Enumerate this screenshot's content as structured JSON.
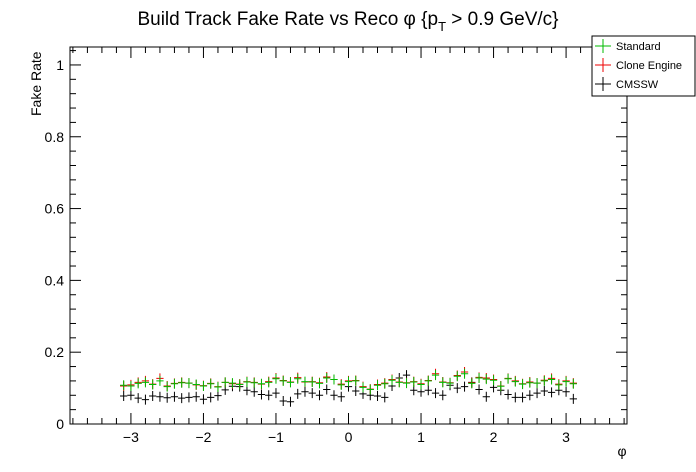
{
  "chart_data": {
    "type": "scatter",
    "title_main": "Build Track Fake Rate vs Reco φ {p",
    "title_sub": "T",
    "title_rest": " > 0.9 GeV/c}",
    "xlabel": "φ",
    "ylabel": "Fake Rate",
    "xlim": [
      -3.84,
      3.84
    ],
    "ylim": [
      0,
      1.05
    ],
    "x_ticks": [
      -3,
      -2,
      -1,
      0,
      1,
      2,
      3
    ],
    "x_tick_labels": [
      "−3",
      "−2",
      "−1",
      "0",
      "1",
      "2",
      "3"
    ],
    "y_ticks": [
      0,
      0.2,
      0.4,
      0.6,
      0.8,
      1
    ],
    "y_tick_labels": [
      "0",
      "0.2",
      "0.4",
      "0.6",
      "0.8",
      "1"
    ],
    "legend_position": "top-right",
    "x": [
      -3.1,
      -3.0,
      -2.9,
      -2.8,
      -2.7,
      -2.6,
      -2.5,
      -2.4,
      -2.3,
      -2.2,
      -2.1,
      -2.0,
      -1.9,
      -1.8,
      -1.7,
      -1.6,
      -1.5,
      -1.4,
      -1.3,
      -1.2,
      -1.1,
      -1.0,
      -0.9,
      -0.8,
      -0.7,
      -0.6,
      -0.5,
      -0.4,
      -0.3,
      -0.2,
      -0.1,
      0.0,
      0.1,
      0.2,
      0.3,
      0.4,
      0.5,
      0.6,
      0.7,
      0.8,
      0.9,
      1.0,
      1.1,
      1.2,
      1.3,
      1.4,
      1.5,
      1.6,
      1.7,
      1.8,
      1.9,
      2.0,
      2.1,
      2.2,
      2.3,
      2.4,
      2.5,
      2.6,
      2.7,
      2.8,
      2.9,
      3.0,
      3.1
    ],
    "series": [
      {
        "name": "Standard",
        "color": "#00bb00",
        "values": [
          0.108,
          0.106,
          0.113,
          0.116,
          0.11,
          0.12,
          0.104,
          0.112,
          0.115,
          0.114,
          0.11,
          0.106,
          0.112,
          0.103,
          0.116,
          0.114,
          0.11,
          0.117,
          0.115,
          0.112,
          0.116,
          0.126,
          0.12,
          0.116,
          0.126,
          0.118,
          0.117,
          0.113,
          0.128,
          0.124,
          0.109,
          0.118,
          0.12,
          0.102,
          0.096,
          0.108,
          0.112,
          0.122,
          0.116,
          0.114,
          0.117,
          0.11,
          0.12,
          0.136,
          0.116,
          0.114,
          0.133,
          0.14,
          0.113,
          0.128,
          0.125,
          0.122,
          0.105,
          0.126,
          0.118,
          0.111,
          0.115,
          0.114,
          0.12,
          0.124,
          0.109,
          0.118,
          0.112
        ]
      },
      {
        "name": "Clone Engine",
        "color": "#ee0000",
        "values": [
          0.106,
          0.109,
          0.116,
          0.12,
          0.111,
          0.127,
          0.106,
          0.113,
          0.116,
          0.114,
          0.109,
          0.107,
          0.113,
          0.104,
          0.116,
          0.112,
          0.111,
          0.118,
          0.116,
          0.111,
          0.118,
          0.128,
          0.121,
          0.117,
          0.129,
          0.117,
          0.118,
          0.115,
          0.131,
          0.124,
          0.111,
          0.12,
          0.121,
          0.104,
          0.097,
          0.11,
          0.114,
          0.124,
          0.117,
          0.115,
          0.118,
          0.112,
          0.121,
          0.14,
          0.117,
          0.115,
          0.135,
          0.145,
          0.115,
          0.13,
          0.128,
          0.124,
          0.106,
          0.127,
          0.12,
          0.112,
          0.117,
          0.114,
          0.122,
          0.127,
          0.111,
          0.12,
          0.114
        ]
      },
      {
        "name": "CMSSW",
        "color": "#000000",
        "values": [
          0.078,
          0.08,
          0.072,
          0.068,
          0.078,
          0.076,
          0.073,
          0.076,
          0.072,
          0.074,
          0.076,
          0.069,
          0.074,
          0.079,
          0.095,
          0.105,
          0.104,
          0.094,
          0.09,
          0.082,
          0.08,
          0.086,
          0.064,
          0.062,
          0.084,
          0.09,
          0.086,
          0.08,
          0.096,
          0.08,
          0.076,
          0.104,
          0.092,
          0.084,
          0.08,
          0.078,
          0.074,
          0.106,
          0.128,
          0.136,
          0.094,
          0.09,
          0.094,
          0.086,
          0.08,
          0.108,
          0.1,
          0.104,
          0.116,
          0.096,
          0.076,
          0.102,
          0.094,
          0.082,
          0.074,
          0.074,
          0.08,
          0.086,
          0.092,
          0.088,
          0.094,
          0.09,
          0.07
        ]
      }
    ]
  }
}
